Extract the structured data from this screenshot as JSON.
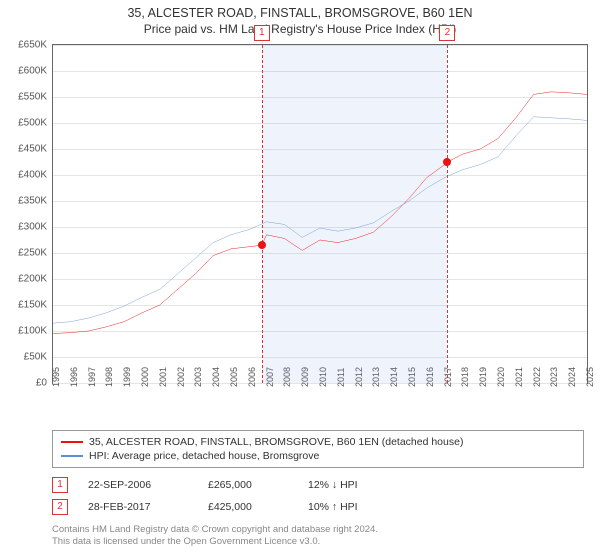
{
  "title": {
    "main": "35, ALCESTER ROAD, FINSTALL, BROMSGROVE, B60 1EN",
    "sub": "Price paid vs. HM Land Registry's House Price Index (HPI)"
  },
  "chart": {
    "type": "line",
    "background_color": "#ffffff",
    "grid_color": "#e5e5e5",
    "axes_color": "#666666",
    "text_color": "#555555",
    "title_fontsize": 12,
    "label_fontsize": 10,
    "yaxis": {
      "min": 0,
      "max": 650000,
      "step": 50000,
      "prefix": "£",
      "k_suffix": true
    },
    "xaxis": {
      "min": 1995,
      "max": 2025,
      "step": 1,
      "rotated": true
    },
    "shaded_band": {
      "from": 2006.73,
      "to": 2017.16,
      "color": "rgba(120,160,220,0.12)"
    },
    "markers": [
      {
        "id": "1",
        "x": 2006.73,
        "y": 265000,
        "color": "#e11"
      },
      {
        "id": "2",
        "x": 2017.16,
        "y": 425000,
        "color": "#e11"
      }
    ],
    "vline_color": "#d33",
    "series": [
      {
        "name": "price_paid",
        "label": "35, ALCESTER ROAD, FINSTALL, BROMSGROVE, B60 1EN (detached house)",
        "color": "#e11",
        "width": 1.6,
        "y_by_year": {
          "1995": 95000,
          "1996": 97000,
          "1997": 100000,
          "1998": 108000,
          "1999": 118000,
          "2000": 135000,
          "2001": 150000,
          "2002": 180000,
          "2003": 210000,
          "2004": 245000,
          "2005": 258000,
          "2006": 262000,
          "2006.73": 265000,
          "2007": 285000,
          "2008": 278000,
          "2009": 255000,
          "2010": 275000,
          "2011": 270000,
          "2012": 278000,
          "2013": 290000,
          "2014": 320000,
          "2015": 355000,
          "2016": 395000,
          "2017": 420000,
          "2017.16": 425000,
          "2018": 440000,
          "2019": 450000,
          "2020": 470000,
          "2021": 510000,
          "2022": 555000,
          "2023": 560000,
          "2024": 558000,
          "2025": 555000
        }
      },
      {
        "name": "hpi",
        "label": "HPI: Average price, detached house, Bromsgrove",
        "color": "#5a8fd6",
        "width": 1.4,
        "y_by_year": {
          "1995": 115000,
          "1996": 118000,
          "1997": 125000,
          "1998": 135000,
          "1999": 148000,
          "2000": 165000,
          "2001": 180000,
          "2002": 210000,
          "2003": 240000,
          "2004": 270000,
          "2005": 285000,
          "2006": 295000,
          "2007": 310000,
          "2008": 305000,
          "2009": 280000,
          "2010": 298000,
          "2011": 292000,
          "2012": 298000,
          "2013": 308000,
          "2014": 330000,
          "2015": 350000,
          "2016": 375000,
          "2017": 395000,
          "2018": 410000,
          "2019": 420000,
          "2020": 435000,
          "2021": 475000,
          "2022": 512000,
          "2023": 510000,
          "2024": 508000,
          "2025": 505000
        }
      }
    ]
  },
  "legend": {
    "border_color": "#999"
  },
  "transactions": [
    {
      "id": "1",
      "date": "22-SEP-2006",
      "price": "£265,000",
      "hpi": "12% ↓ HPI"
    },
    {
      "id": "2",
      "date": "28-FEB-2017",
      "price": "£425,000",
      "hpi": "10% ↑ HPI"
    }
  ],
  "footnote": {
    "l1": "Contains HM Land Registry data © Crown copyright and database right 2024.",
    "l2": "This data is licensed under the Open Government Licence v3.0."
  }
}
